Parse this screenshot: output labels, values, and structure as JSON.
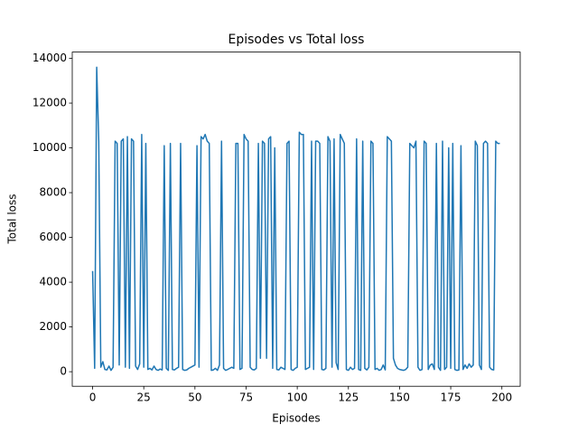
{
  "chart_data": {
    "type": "line",
    "title": "Episodes vs Total loss",
    "x_label": "Episodes",
    "y_label": "Total loss",
    "x": [
      0,
      1,
      2,
      3,
      4,
      5,
      6,
      7,
      8,
      9,
      10,
      11,
      12,
      13,
      14,
      15,
      16,
      17,
      18,
      19,
      20,
      21,
      22,
      23,
      24,
      25,
      26,
      27,
      28,
      29,
      30,
      31,
      32,
      33,
      34,
      35,
      36,
      37,
      38,
      39,
      40,
      41,
      42,
      43,
      44,
      45,
      46,
      47,
      48,
      49,
      50,
      51,
      52,
      53,
      54,
      55,
      56,
      57,
      58,
      59,
      60,
      61,
      62,
      63,
      64,
      65,
      66,
      67,
      68,
      69,
      70,
      71,
      72,
      73,
      74,
      75,
      76,
      77,
      78,
      79,
      80,
      81,
      82,
      83,
      84,
      85,
      86,
      87,
      88,
      89,
      90,
      91,
      92,
      93,
      94,
      95,
      96,
      97,
      98,
      99,
      100,
      101,
      102,
      103,
      104,
      105,
      106,
      107,
      108,
      109,
      110,
      111,
      112,
      113,
      114,
      115,
      116,
      117,
      118,
      119,
      120,
      121,
      122,
      123,
      124,
      125,
      126,
      127,
      128,
      129,
      130,
      131,
      132,
      133,
      134,
      135,
      136,
      137,
      138,
      139,
      140,
      141,
      142,
      143,
      144,
      145,
      146,
      147,
      148,
      149,
      150,
      151,
      152,
      153,
      154,
      155,
      156,
      157,
      158,
      159,
      160,
      161,
      162,
      163,
      164,
      165,
      166,
      167,
      168,
      169,
      170,
      171,
      172,
      173,
      174,
      175,
      176,
      177,
      178,
      179,
      180,
      181,
      182,
      183,
      184,
      185,
      186,
      187,
      188,
      189,
      190,
      191,
      192,
      193,
      194,
      195,
      196,
      197,
      198,
      199
    ],
    "series": [
      {
        "color": "#1f77b4",
        "values": [
          4500,
          150,
          13600,
          10300,
          200,
          450,
          100,
          80,
          250,
          60,
          200,
          10300,
          10200,
          300,
          10300,
          10400,
          200,
          10500,
          150,
          10400,
          10300,
          250,
          100,
          350,
          10600,
          200,
          10200,
          100,
          150,
          80,
          250,
          100,
          60,
          120,
          80,
          10100,
          150,
          60,
          10200,
          100,
          80,
          150,
          200,
          10200,
          100,
          60,
          80,
          150,
          200,
          250,
          300,
          10100,
          200,
          10500,
          10400,
          10600,
          10300,
          10200,
          60,
          80,
          150,
          60,
          300,
          10300,
          150,
          60,
          100,
          150,
          200,
          150,
          10200,
          10200,
          100,
          150,
          10600,
          10400,
          10300,
          200,
          100,
          80,
          150,
          10200,
          600,
          10300,
          10200,
          600,
          10400,
          10500,
          150,
          10000,
          100,
          80,
          200,
          150,
          100,
          10200,
          10300,
          100,
          60,
          150,
          200,
          10700,
          10600,
          10600,
          100,
          150,
          200,
          10300,
          100,
          10300,
          10300,
          10200,
          100,
          80,
          150,
          10500,
          10300,
          200,
          10400,
          400,
          100,
          10600,
          10400,
          10200,
          100,
          60,
          200,
          100,
          150,
          10400,
          100,
          60,
          10300,
          150,
          80,
          200,
          10300,
          10200,
          100,
          150,
          60,
          100,
          300,
          80,
          10500,
          10400,
          10300,
          600,
          300,
          150,
          100,
          80,
          60,
          100,
          200,
          10200,
          10100,
          10000,
          10300,
          200,
          60,
          100,
          10300,
          10200,
          100,
          300,
          350,
          100,
          10200,
          200,
          60,
          10300,
          100,
          200,
          10000,
          150,
          10200,
          100,
          60,
          80,
          10100,
          100,
          300,
          150,
          350,
          200,
          300,
          10300,
          10100,
          300,
          100,
          10200,
          10300,
          10200,
          200,
          100,
          80,
          10300,
          10200,
          10200
        ]
      }
    ],
    "xlim": [
      -9.95,
      208.95
    ],
    "ylim": [
      -650,
      14280
    ],
    "xticks": [
      0,
      25,
      50,
      75,
      100,
      125,
      150,
      175,
      200
    ],
    "yticks": [
      0,
      2000,
      4000,
      6000,
      8000,
      10000,
      12000,
      14000
    ]
  }
}
